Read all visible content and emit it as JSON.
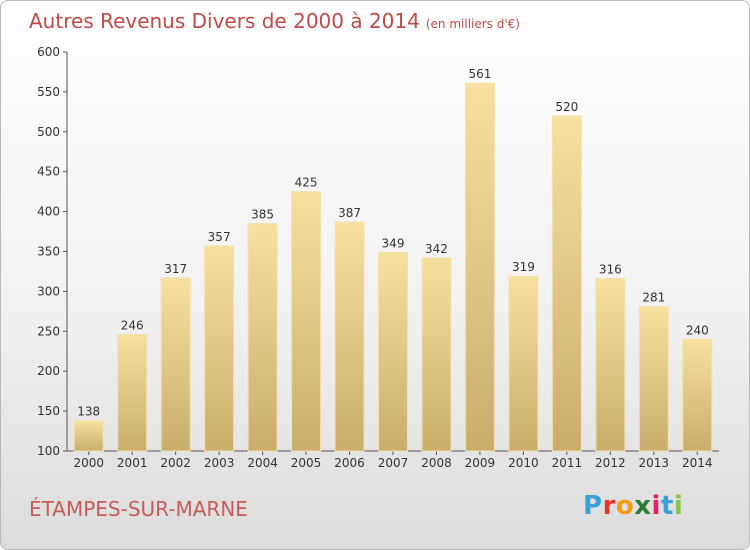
{
  "header": {
    "title": "Autres Revenus Divers de 2000 à 2014",
    "subtitle": "(en milliers d'€)"
  },
  "footer": {
    "city": "ÉTAMPES-SUR-MARNE",
    "logo_letters": [
      "P",
      "r",
      "o",
      "x",
      "i",
      "t",
      "i"
    ],
    "logo_colors": [
      "#3aa0d8",
      "#e8332b",
      "#f39c12",
      "#2e7d32",
      "#e91e63",
      "#3aa0d8",
      "#8bc34a"
    ]
  },
  "chart_data": {
    "type": "bar",
    "categories": [
      "2000",
      "2001",
      "2002",
      "2003",
      "2004",
      "2005",
      "2006",
      "2007",
      "2008",
      "2009",
      "2010",
      "2011",
      "2012",
      "2013",
      "2014"
    ],
    "values": [
      138,
      246,
      317,
      357,
      385,
      425,
      387,
      349,
      342,
      561,
      319,
      520,
      316,
      281,
      240
    ],
    "ylim": [
      100,
      600
    ],
    "yticks": [
      100,
      150,
      200,
      250,
      300,
      350,
      400,
      450,
      500,
      550,
      600
    ],
    "grid": false,
    "bar_color_top": "#f7e0a0",
    "bar_color_bottom": "#c9ae6a"
  }
}
